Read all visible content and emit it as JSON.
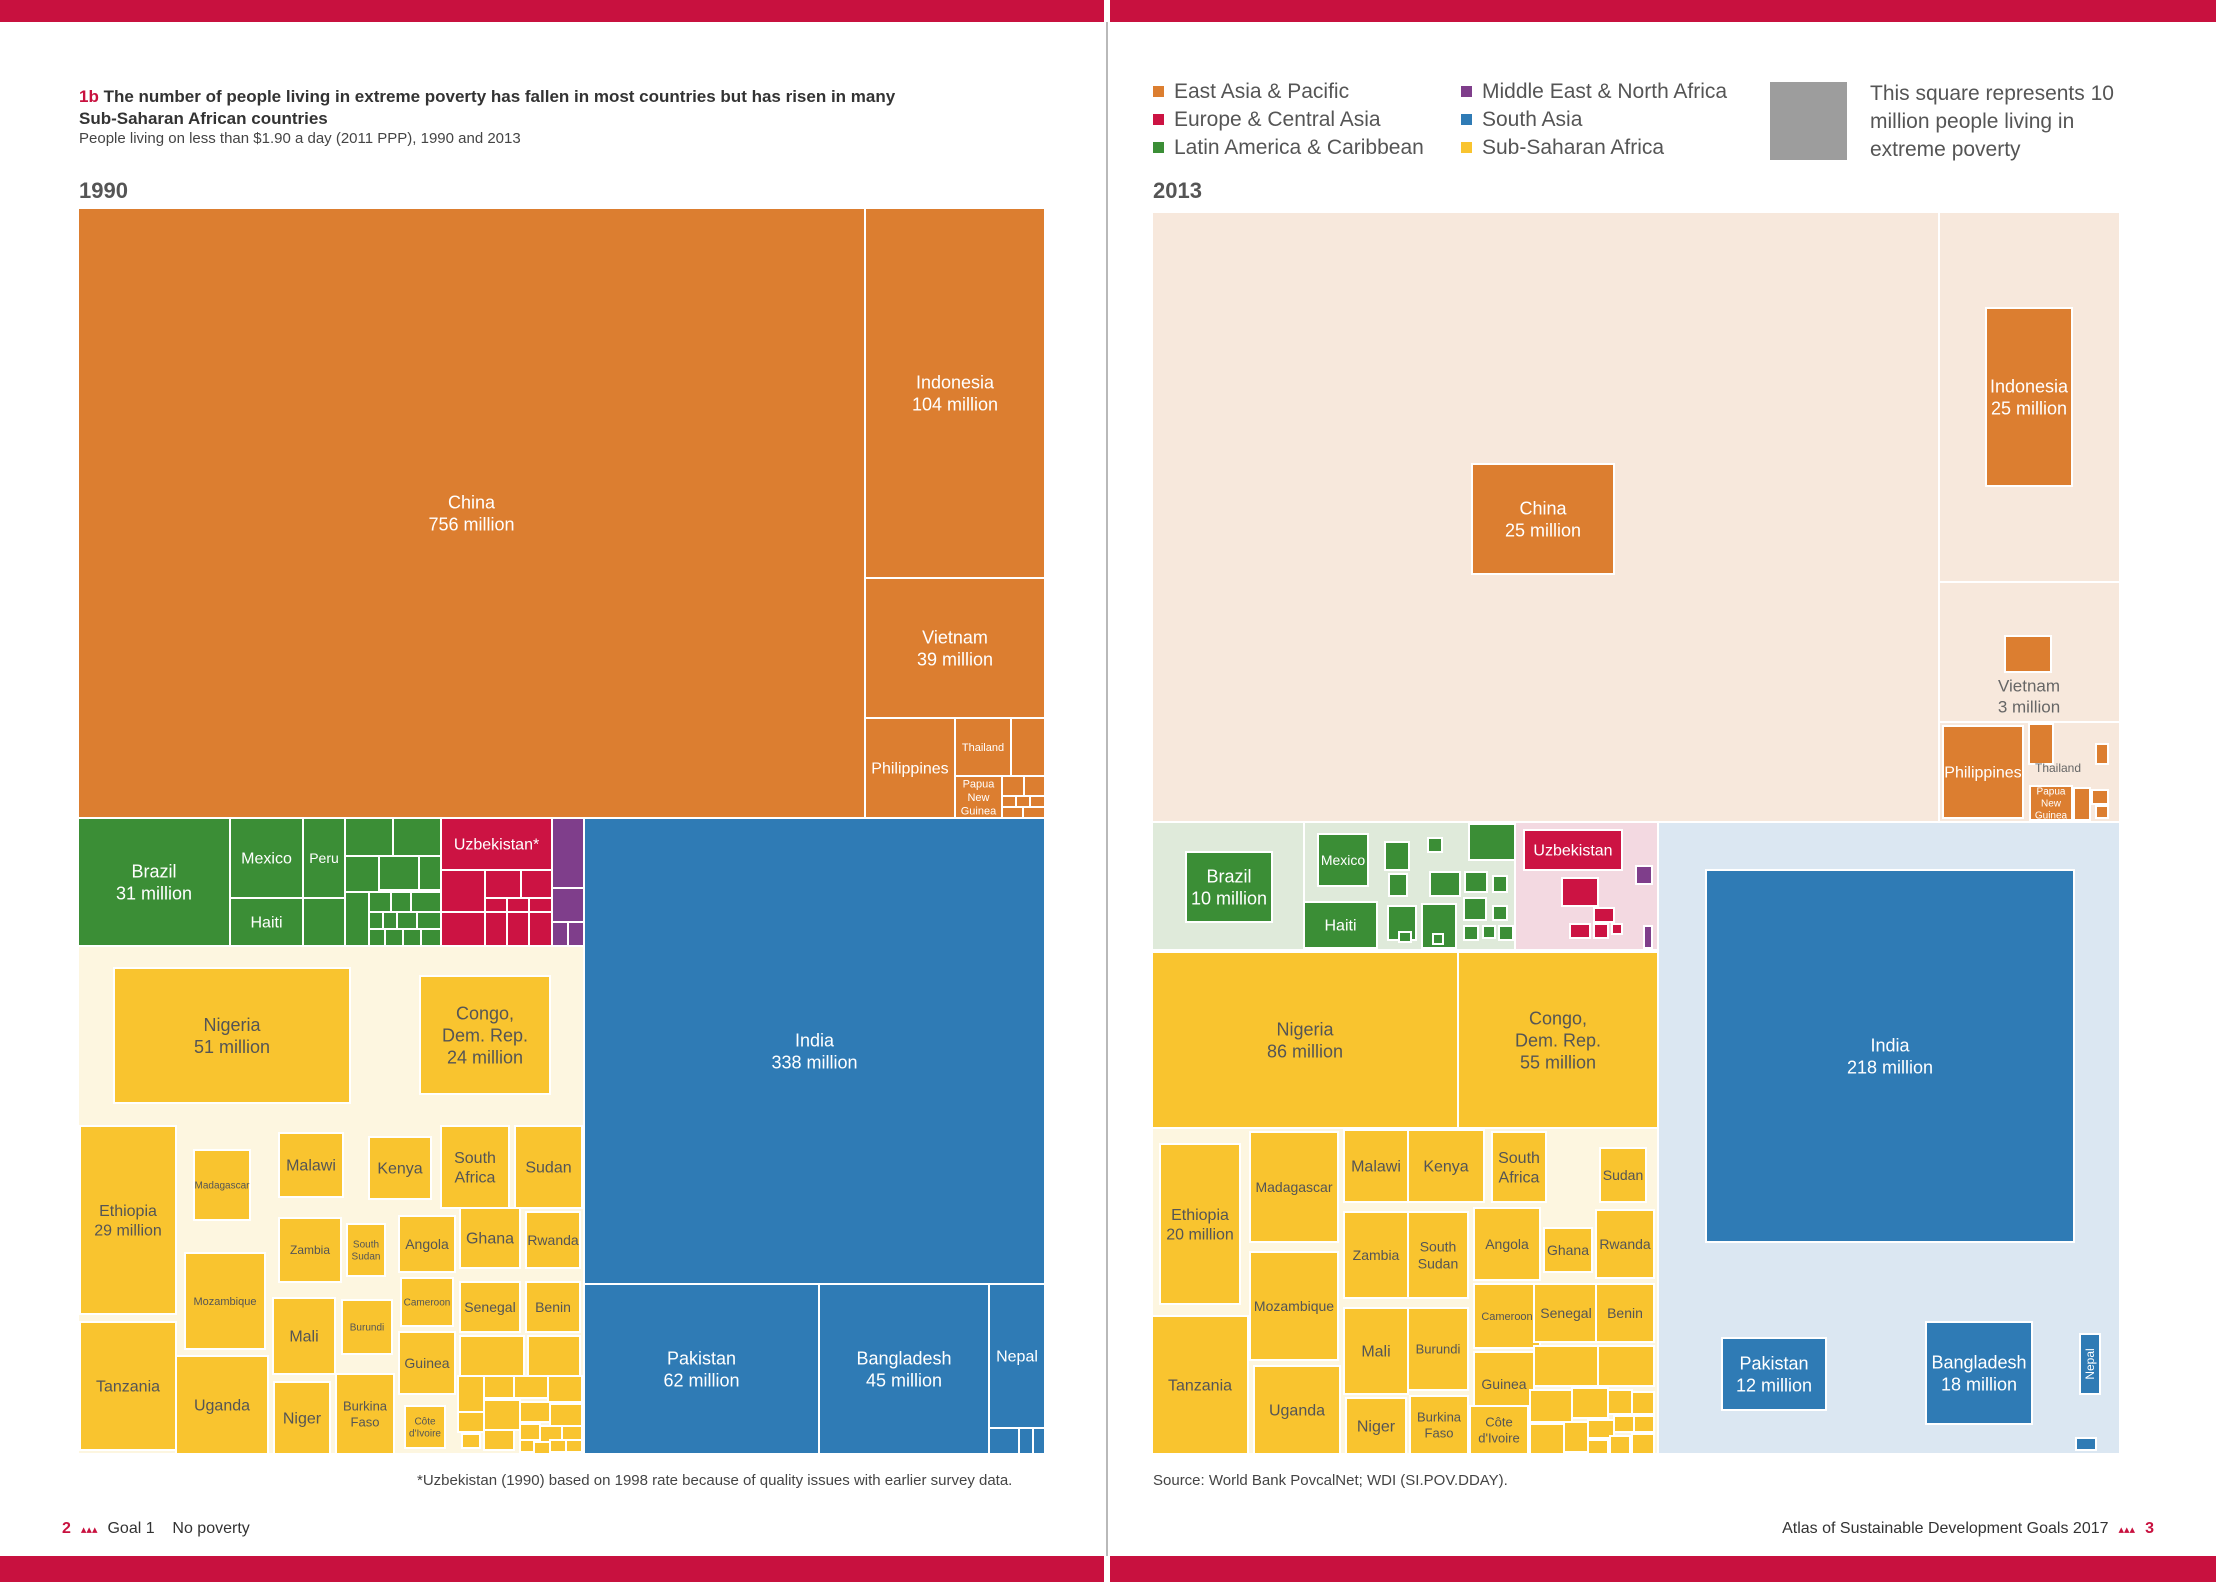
{
  "figure": {
    "title_num": "1b",
    "title_text": "The number of people living in extreme poverty has fallen in most countries but has risen in many",
    "title_text2": "Sub-Saharan African countries",
    "subtitle": "People living on less than $1.90 a day (2011 PPP), 1990 and 2013"
  },
  "legend": {
    "items": [
      {
        "label": "East Asia & Pacific",
        "color": "#dc7e30"
      },
      {
        "label": "Europe & Central Asia",
        "color": "#cc1343"
      },
      {
        "label": "Latin America & Caribbean",
        "color": "#3b8e36"
      },
      {
        "label": "Middle East & North Africa",
        "color": "#7f3e8b"
      },
      {
        "label": "South Asia",
        "color": "#2f7bb5"
      },
      {
        "label": "Sub-Saharan Africa",
        "color": "#f9c42f"
      }
    ],
    "reference_note": "This square represents 10 million people living in extreme poverty"
  },
  "notes": {
    "footnote": "*Uzbekistan (1990) based on 1998 rate because of quality issues with earlier survey data.",
    "source": "Source: World Bank PovcalNet; WDI (SI.POV.DDAY)."
  },
  "footer": {
    "left_page": "2",
    "left_goal": "Goal 1",
    "left_topic": "No poverty",
    "right_text": "Atlas of Sustainable Development Goals 2017",
    "right_page": "3"
  },
  "chart_data": [
    {
      "type": "treemap",
      "title": "1990",
      "value_unit": "million people",
      "items": [
        {
          "name": "China",
          "value": 756,
          "label": "756 million",
          "region": "East Asia & Pacific"
        },
        {
          "name": "Indonesia",
          "value": 104,
          "label": "104 million",
          "region": "East Asia & Pacific"
        },
        {
          "name": "Vietnam",
          "value": 39,
          "label": "39 million",
          "region": "East Asia & Pacific"
        },
        {
          "name": "Philippines",
          "region": "East Asia & Pacific"
        },
        {
          "name": "Thailand",
          "region": "East Asia & Pacific"
        },
        {
          "name": "Papua New Guinea",
          "region": "East Asia & Pacific"
        },
        {
          "name": "Brazil",
          "value": 31,
          "label": "31 million",
          "region": "Latin America & Caribbean"
        },
        {
          "name": "Mexico",
          "region": "Latin America & Caribbean"
        },
        {
          "name": "Peru",
          "region": "Latin America & Caribbean"
        },
        {
          "name": "Haiti",
          "region": "Latin America & Caribbean"
        },
        {
          "name": "Uzbekistan*",
          "region": "Europe & Central Asia"
        },
        {
          "name": "India",
          "value": 338,
          "label": "338 million",
          "region": "South Asia"
        },
        {
          "name": "Pakistan",
          "value": 62,
          "label": "62 million",
          "region": "South Asia"
        },
        {
          "name": "Bangladesh",
          "value": 45,
          "label": "45 million",
          "region": "South Asia"
        },
        {
          "name": "Nepal",
          "region": "South Asia"
        },
        {
          "name": "Nigeria",
          "value": 51,
          "label": "51 million",
          "region": "Sub-Saharan Africa"
        },
        {
          "name": "Congo, Dem. Rep.",
          "value": 24,
          "label": "24 million",
          "region": "Sub-Saharan Africa"
        },
        {
          "name": "Ethiopia",
          "value": 29,
          "label": "29 million",
          "region": "Sub-Saharan Africa"
        },
        {
          "name": "Madagascar",
          "region": "Sub-Saharan Africa"
        },
        {
          "name": "Malawi",
          "region": "Sub-Saharan Africa"
        },
        {
          "name": "Kenya",
          "region": "Sub-Saharan Africa"
        },
        {
          "name": "South Africa",
          "region": "Sub-Saharan Africa"
        },
        {
          "name": "Sudan",
          "region": "Sub-Saharan Africa"
        },
        {
          "name": "Zambia",
          "region": "Sub-Saharan Africa"
        },
        {
          "name": "South Sudan",
          "region": "Sub-Saharan Africa"
        },
        {
          "name": "Angola",
          "region": "Sub-Saharan Africa"
        },
        {
          "name": "Ghana",
          "region": "Sub-Saharan Africa"
        },
        {
          "name": "Rwanda",
          "region": "Sub-Saharan Africa"
        },
        {
          "name": "Mozambique",
          "region": "Sub-Saharan Africa"
        },
        {
          "name": "Cameroon",
          "region": "Sub-Saharan Africa"
        },
        {
          "name": "Senegal",
          "region": "Sub-Saharan Africa"
        },
        {
          "name": "Benin",
          "region": "Sub-Saharan Africa"
        },
        {
          "name": "Mali",
          "region": "Sub-Saharan Africa"
        },
        {
          "name": "Burundi",
          "region": "Sub-Saharan Africa"
        },
        {
          "name": "Guinea",
          "region": "Sub-Saharan Africa"
        },
        {
          "name": "Tanzania",
          "region": "Sub-Saharan Africa"
        },
        {
          "name": "Uganda",
          "region": "Sub-Saharan Africa"
        },
        {
          "name": "Niger",
          "region": "Sub-Saharan Africa"
        },
        {
          "name": "Burkina Faso",
          "region": "Sub-Saharan Africa"
        },
        {
          "name": "Côte d'Ivoire",
          "region": "Sub-Saharan Africa"
        }
      ]
    },
    {
      "type": "treemap",
      "title": "2013",
      "value_unit": "million people",
      "items": [
        {
          "name": "China",
          "value": 25,
          "label": "25 million",
          "region": "East Asia & Pacific"
        },
        {
          "name": "Indonesia",
          "value": 25,
          "label": "25 million",
          "region": "East Asia & Pacific"
        },
        {
          "name": "Vietnam",
          "value": 3,
          "label": "3 million",
          "region": "East Asia & Pacific"
        },
        {
          "name": "Philippines",
          "region": "East Asia & Pacific"
        },
        {
          "name": "Thailand",
          "region": "East Asia & Pacific"
        },
        {
          "name": "Papua New Guinea",
          "region": "East Asia & Pacific"
        },
        {
          "name": "Brazil",
          "value": 10,
          "label": "10 million",
          "region": "Latin America & Caribbean"
        },
        {
          "name": "Mexico",
          "region": "Latin America & Caribbean"
        },
        {
          "name": "Haiti",
          "region": "Latin America & Caribbean"
        },
        {
          "name": "Uzbekistan",
          "region": "Europe & Central Asia"
        },
        {
          "name": "India",
          "value": 218,
          "label": "218 million",
          "region": "South Asia"
        },
        {
          "name": "Pakistan",
          "value": 12,
          "label": "12 million",
          "region": "South Asia"
        },
        {
          "name": "Bangladesh",
          "value": 18,
          "label": "18 million",
          "region": "South Asia"
        },
        {
          "name": "Nepal",
          "region": "South Asia"
        },
        {
          "name": "Nigeria",
          "value": 86,
          "label": "86 million",
          "region": "Sub-Saharan Africa"
        },
        {
          "name": "Congo, Dem. Rep.",
          "value": 55,
          "label": "55 million",
          "region": "Sub-Saharan Africa"
        },
        {
          "name": "Ethiopia",
          "value": 20,
          "label": "20 million",
          "region": "Sub-Saharan Africa"
        },
        {
          "name": "Madagascar",
          "region": "Sub-Saharan Africa"
        },
        {
          "name": "Malawi",
          "region": "Sub-Saharan Africa"
        },
        {
          "name": "Kenya",
          "region": "Sub-Saharan Africa"
        },
        {
          "name": "South Africa",
          "region": "Sub-Saharan Africa"
        },
        {
          "name": "Sudan",
          "region": "Sub-Saharan Africa"
        },
        {
          "name": "Zambia",
          "region": "Sub-Saharan Africa"
        },
        {
          "name": "South Sudan",
          "region": "Sub-Saharan Africa"
        },
        {
          "name": "Angola",
          "region": "Sub-Saharan Africa"
        },
        {
          "name": "Ghana",
          "region": "Sub-Saharan Africa"
        },
        {
          "name": "Rwanda",
          "region": "Sub-Saharan Africa"
        },
        {
          "name": "Mozambique",
          "region": "Sub-Saharan Africa"
        },
        {
          "name": "Cameroon",
          "region": "Sub-Saharan Africa"
        },
        {
          "name": "Senegal",
          "region": "Sub-Saharan Africa"
        },
        {
          "name": "Benin",
          "region": "Sub-Saharan Africa"
        },
        {
          "name": "Mali",
          "region": "Sub-Saharan Africa"
        },
        {
          "name": "Burundi",
          "region": "Sub-Saharan Africa"
        },
        {
          "name": "Guinea",
          "region": "Sub-Saharan Africa"
        },
        {
          "name": "Tanzania",
          "region": "Sub-Saharan Africa"
        },
        {
          "name": "Uganda",
          "region": "Sub-Saharan Africa"
        },
        {
          "name": "Niger",
          "region": "Sub-Saharan Africa"
        },
        {
          "name": "Burkina Faso",
          "region": "Sub-Saharan Africa"
        },
        {
          "name": "Côte d'Ivoire",
          "region": "Sub-Saharan Africa"
        }
      ]
    }
  ]
}
